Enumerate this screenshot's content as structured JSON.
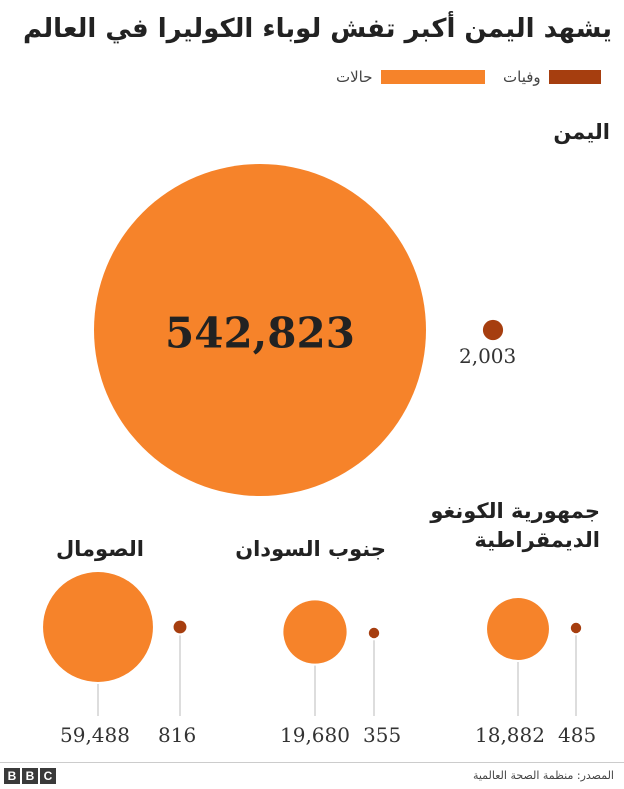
{
  "title": "يشهد اليمن أكبر تفش لوباء الكوليرا في العالم",
  "legend": {
    "cases": {
      "label": "حالات",
      "color": "#f6832a"
    },
    "deaths": {
      "label": "وفيات",
      "color": "#a63e0f"
    }
  },
  "chart_data": {
    "type": "proportional-area-circles",
    "series": [
      {
        "name": "حالات",
        "color": "#f6832a"
      },
      {
        "name": "وفيات",
        "color": "#a63e0f"
      }
    ],
    "countries": [
      {
        "name": "اليمن",
        "cases": 542823,
        "cases_label": "542,823",
        "deaths": 2003,
        "deaths_label": "2,003"
      },
      {
        "name": "الصومال",
        "cases": 59488,
        "cases_label": "59,488",
        "deaths": 816,
        "deaths_label": "816"
      },
      {
        "name": "جنوب السودان",
        "cases": 19680,
        "cases_label": "19,680",
        "deaths": 355,
        "deaths_label": "355"
      },
      {
        "name": "جمهورية الكونغو الديمقراطية",
        "name_line1": "جمهورية الكونغو",
        "name_line2": "الديمقراطية",
        "cases": 18882,
        "cases_label": "18,882",
        "deaths": 485,
        "deaths_label": "485"
      }
    ]
  },
  "footer": {
    "source": "المصدر: منظمة الصحة العالمية",
    "logo": [
      "B",
      "B",
      "C"
    ]
  }
}
